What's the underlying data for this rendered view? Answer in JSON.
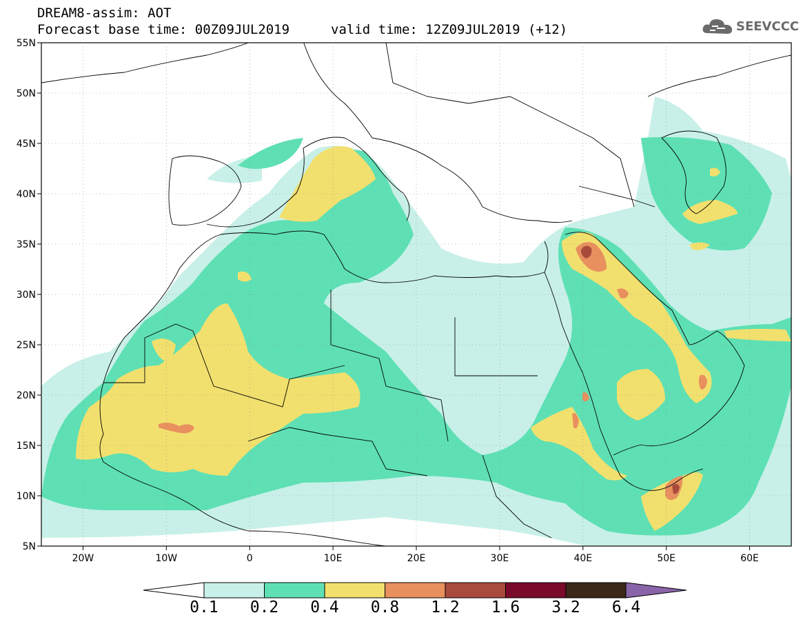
{
  "header": {
    "title_line1": "DREAM8-assim: AOT",
    "title_line2": "Forecast base time: 00Z09JUL2019",
    "valid_time": "valid time: 12Z09JUL2019 (+12)",
    "logo_text": "SEEVCCC"
  },
  "axes": {
    "lat_labels": [
      "55N",
      "50N",
      "45N",
      "40N",
      "35N",
      "30N",
      "25N",
      "20N",
      "15N",
      "10N",
      "5N"
    ],
    "lon_labels": [
      "20W",
      "10W",
      "0",
      "10E",
      "20E",
      "30E",
      "40E",
      "50E",
      "60E"
    ],
    "lat_range": [
      5,
      55
    ],
    "lon_range": [
      -25,
      65
    ]
  },
  "legend": {
    "labels": [
      "0.1",
      "0.2",
      "0.4",
      "0.8",
      "1.2",
      "1.6",
      "3.2",
      "6.4"
    ],
    "colors": [
      "#c8f0e8",
      "#5ee0b4",
      "#f2e06e",
      "#e8905e",
      "#a84a3c",
      "#7a0a2a",
      "#3c2818",
      "#8a64a8"
    ],
    "below_color": "#ffffff"
  },
  "colors": {
    "level1": "#c8f0e8",
    "level2": "#5ee0b4",
    "level3": "#f2e06e",
    "level4": "#e8905e",
    "level5": "#a84a3c"
  }
}
